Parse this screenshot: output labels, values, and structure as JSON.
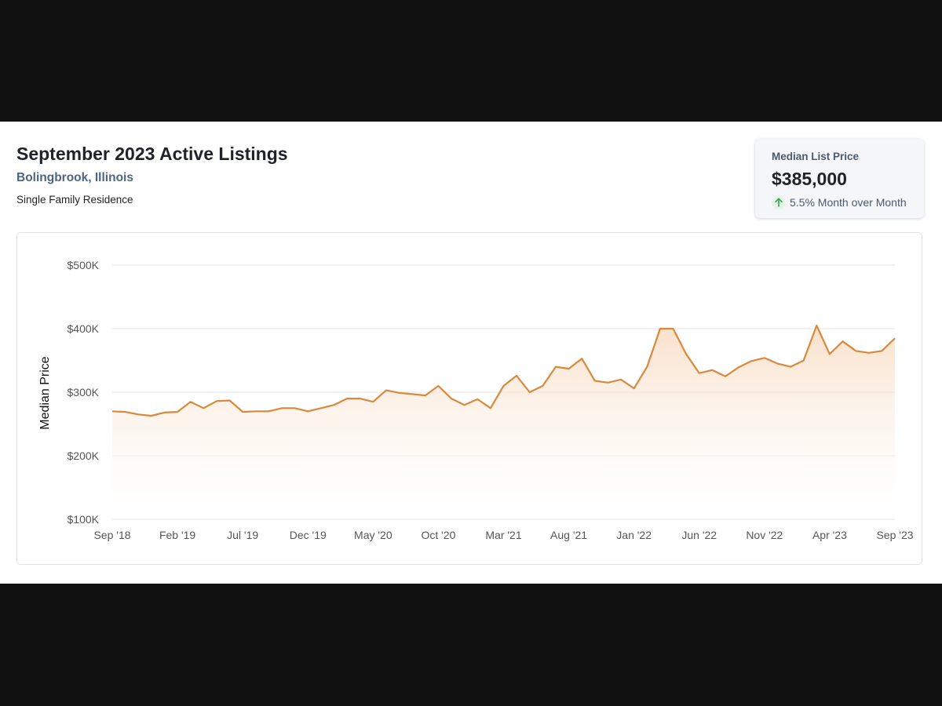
{
  "header": {
    "title": "September 2023 Active Listings",
    "location": "Bolingbrook, Illinois",
    "property_type": "Single Family Residence"
  },
  "stat_card": {
    "label": "Median List Price",
    "value": "$385,000",
    "change": "5.5% Month over Month",
    "change_direction": "up",
    "change_icon": "arrow-up-icon"
  },
  "colors": {
    "line": "#d9893d",
    "fill_top": "#f7d6b8",
    "arrow": "#2fa84f",
    "grid": "#e6e6e6"
  },
  "chart_data": {
    "type": "area",
    "ylabel": "Median Price",
    "ylim": [
      100000,
      500000
    ],
    "yticks": [
      100000,
      200000,
      300000,
      400000,
      500000
    ],
    "ytick_labels": [
      "$100K",
      "$200K",
      "$300K",
      "$400K",
      "$500K"
    ],
    "grid": true,
    "xtick_labels": [
      "Sep '18",
      "Feb '19",
      "Jul '19",
      "Dec '19",
      "May '20",
      "Oct '20",
      "Mar '21",
      "Aug '21",
      "Jan '22",
      "Jun '22",
      "Nov '22",
      "Apr '23",
      "Sep '23"
    ],
    "xtick_every": 5,
    "series": [
      {
        "values": [
          270000,
          269000,
          265000,
          263000,
          268000,
          269000,
          285000,
          275000,
          286000,
          287000,
          269000,
          270000,
          270000,
          275000,
          275000,
          270000,
          275000,
          280000,
          290000,
          290000,
          285000,
          303000,
          299000,
          297000,
          295000,
          310000,
          290000,
          280000,
          289000,
          275000,
          310000,
          326000,
          300000,
          310000,
          340000,
          337000,
          353000,
          318000,
          315000,
          320000,
          306000,
          340000,
          400000,
          400000,
          360000,
          330000,
          335000,
          325000,
          339000,
          349000,
          354000,
          345000,
          340000,
          350000,
          405000,
          360000,
          380000,
          365000,
          362000,
          365000,
          385000
        ]
      }
    ]
  }
}
